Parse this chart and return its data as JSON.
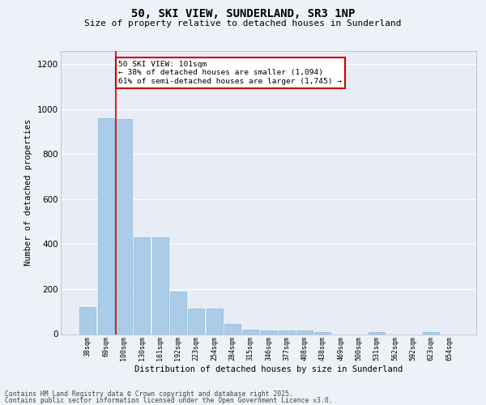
{
  "title_line1": "50, SKI VIEW, SUNDERLAND, SR3 1NP",
  "title_line2": "Size of property relative to detached houses in Sunderland",
  "xlabel": "Distribution of detached houses by size in Sunderland",
  "ylabel": "Number of detached properties",
  "categories": [
    "38sqm",
    "69sqm",
    "100sqm",
    "130sqm",
    "161sqm",
    "192sqm",
    "223sqm",
    "254sqm",
    "284sqm",
    "315sqm",
    "346sqm",
    "377sqm",
    "408sqm",
    "438sqm",
    "469sqm",
    "500sqm",
    "531sqm",
    "562sqm",
    "592sqm",
    "623sqm",
    "654sqm"
  ],
  "values": [
    120,
    960,
    955,
    430,
    430,
    190,
    115,
    115,
    45,
    20,
    18,
    15,
    18,
    8,
    0,
    0,
    8,
    0,
    0,
    8,
    0
  ],
  "bar_color": "#aacce8",
  "bar_edge_color": "#88b8d8",
  "vline_color": "#cc0000",
  "vline_x_index": 2,
  "annotation_text": "50 SKI VIEW: 101sqm\n← 38% of detached houses are smaller (1,094)\n61% of semi-detached houses are larger (1,745) →",
  "annotation_box_edgecolor": "#cc0000",
  "ylim": [
    0,
    1260
  ],
  "yticks": [
    0,
    200,
    400,
    600,
    800,
    1000,
    1200
  ],
  "plot_bg_color": "#e8ecf4",
  "fig_bg_color": "#eef1f8",
  "grid_color": "#ffffff",
  "footer_line1": "Contains HM Land Registry data © Crown copyright and database right 2025.",
  "footer_line2": "Contains public sector information licensed under the Open Government Licence v3.0."
}
